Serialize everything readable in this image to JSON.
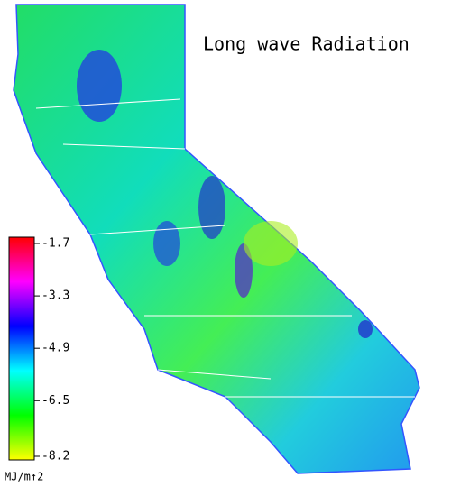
{
  "title": "Long wave Radiation",
  "colorbar": {
    "label": "MJ/m↑2",
    "lim": [
      -8.2,
      -1.7
    ],
    "ticks": [
      -1.7,
      -3.3,
      -4.9,
      -6.5,
      -8.2
    ],
    "colors": [
      "#ffff00",
      "#00ff00",
      "#00ffff",
      "#0000ff",
      "#ff00ff",
      "#ff0000"
    ]
  }
}
